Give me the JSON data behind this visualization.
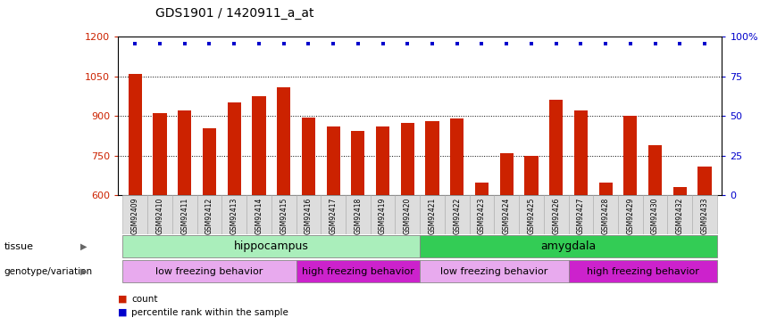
{
  "title": "GDS1901 / 1420911_a_at",
  "samples": [
    "GSM92409",
    "GSM92410",
    "GSM92411",
    "GSM92412",
    "GSM92413",
    "GSM92414",
    "GSM92415",
    "GSM92416",
    "GSM92417",
    "GSM92418",
    "GSM92419",
    "GSM92420",
    "GSM92421",
    "GSM92422",
    "GSM92423",
    "GSM92424",
    "GSM92425",
    "GSM92426",
    "GSM92427",
    "GSM92428",
    "GSM92429",
    "GSM92430",
    "GSM92432",
    "GSM92433"
  ],
  "counts": [
    1060,
    910,
    920,
    855,
    950,
    975,
    1010,
    895,
    860,
    845,
    860,
    875,
    880,
    890,
    650,
    760,
    750,
    960,
    920,
    650,
    900,
    790,
    630,
    710
  ],
  "percentile_vals": [
    97,
    97,
    97,
    97,
    97,
    97,
    97,
    97,
    97,
    97,
    97,
    97,
    97,
    97,
    90,
    97,
    97,
    97,
    97,
    97,
    97,
    97,
    90,
    97
  ],
  "ylim_left": [
    600,
    1200
  ],
  "ylim_right": [
    0,
    100
  ],
  "yticks_left": [
    600,
    750,
    900,
    1050,
    1200
  ],
  "yticks_right": [
    0,
    25,
    50,
    75,
    100
  ],
  "bar_color": "#cc2200",
  "dot_color": "#0000cc",
  "tissue_hippocampus": {
    "label": "hippocampus",
    "start": 0,
    "end": 12,
    "color": "#aaeebb"
  },
  "tissue_amygdala": {
    "label": "amygdala",
    "start": 12,
    "end": 24,
    "color": "#33cc55"
  },
  "geno_low_hippo": {
    "label": "low freezing behavior",
    "start": 0,
    "end": 7,
    "color": "#e8aaee"
  },
  "geno_high_hippo": {
    "label": "high freezing behavior",
    "start": 7,
    "end": 12,
    "color": "#cc22cc"
  },
  "geno_low_amyg": {
    "label": "low freezing behavior",
    "start": 12,
    "end": 18,
    "color": "#e8aaee"
  },
  "geno_high_amyg": {
    "label": "high freezing behavior",
    "start": 18,
    "end": 24,
    "color": "#cc22cc"
  },
  "legend_count_color": "#cc2200",
  "legend_pct_color": "#0000cc",
  "xlabel_bg": "#dddddd",
  "plot_bg": "#ffffff"
}
